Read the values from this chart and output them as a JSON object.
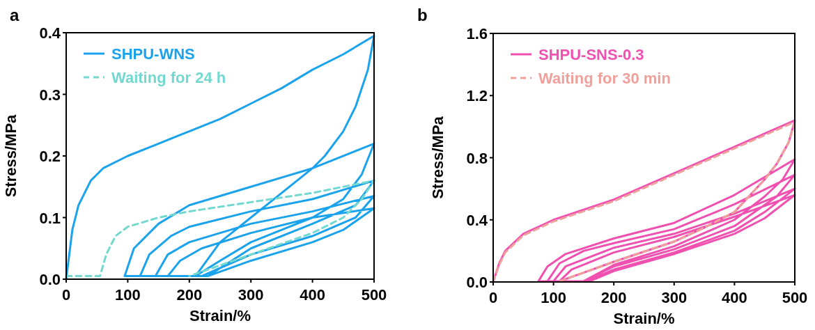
{
  "chart_data": [
    {
      "type": "line",
      "annotations": [
        "a"
      ],
      "xlabel": "Strain/%",
      "ylabel": "Stress/MPa",
      "xlim": [
        0,
        500
      ],
      "ylim": [
        0,
        0.4
      ],
      "xticks": [
        0,
        100,
        200,
        300,
        400,
        500
      ],
      "yticks": [
        {
          "value": 0,
          "label": "0.0"
        },
        0.1,
        0.2,
        0.3,
        0.4
      ],
      "legend": "top left",
      "series": [
        {
          "name": "SHPU-WNS",
          "color": "#1aa3ec",
          "line_style": "solid",
          "x": [
            0,
            10,
            20,
            40,
            60,
            100,
            150,
            200,
            250,
            300,
            350,
            400,
            450,
            500,
            490,
            470,
            450,
            420,
            400,
            350,
            300,
            250,
            210,
            150,
            95,
            null,
            95,
            110,
            150,
            200,
            300,
            400,
            500,
            480,
            450,
            400,
            350,
            300,
            250,
            210,
            120,
            null,
            120,
            135,
            170,
            200,
            300,
            400,
            500,
            470,
            400,
            300,
            230,
            145,
            null,
            145,
            165,
            200,
            300,
            400,
            500,
            470,
            400,
            300,
            220,
            165,
            null,
            165,
            185,
            220,
            300,
            400,
            500,
            450,
            400,
            300,
            230
          ],
          "values": [
            0,
            0.08,
            0.12,
            0.16,
            0.18,
            0.2,
            0.22,
            0.24,
            0.26,
            0.285,
            0.31,
            0.34,
            0.365,
            0.395,
            0.34,
            0.28,
            0.24,
            0.2,
            0.18,
            0.14,
            0.1,
            0.06,
            0.005,
            0.005,
            0.005,
            null,
            0.005,
            0.05,
            0.09,
            0.12,
            0.15,
            0.18,
            0.22,
            0.17,
            0.13,
            0.1,
            0.08,
            0.06,
            0.03,
            0.005,
            0.005,
            null,
            0.005,
            0.04,
            0.07,
            0.085,
            0.11,
            0.13,
            0.16,
            0.12,
            0.09,
            0.05,
            0.005,
            0.005,
            null,
            0.005,
            0.04,
            0.06,
            0.09,
            0.11,
            0.135,
            0.1,
            0.07,
            0.04,
            0.005,
            0.005,
            null,
            0.005,
            0.03,
            0.05,
            0.075,
            0.1,
            0.115,
            0.08,
            0.06,
            0.03,
            0.005
          ]
        },
        {
          "name": "Waiting for 24 h",
          "color": "#72d8d0",
          "line_style": "dashed",
          "x": [
            0,
            55,
            65,
            80,
            100,
            150,
            200,
            300,
            400,
            500,
            480,
            450,
            400,
            300,
            200
          ],
          "values": [
            0.005,
            0.005,
            0.04,
            0.07,
            0.085,
            0.1,
            0.11,
            0.125,
            0.14,
            0.16,
            0.13,
            0.1,
            0.075,
            0.04,
            0.005
          ]
        }
      ]
    },
    {
      "type": "line",
      "annotations": [
        "b"
      ],
      "xlabel": "Strain/%",
      "ylabel": "Stress/MPa",
      "xlim": [
        0,
        500
      ],
      "ylim": [
        0,
        1.6
      ],
      "xticks": [
        0,
        100,
        200,
        300,
        400,
        500
      ],
      "yticks": [
        {
          "value": 0,
          "label": "0.0"
        },
        0.4,
        0.8,
        1.2,
        1.6
      ],
      "legend": "top left",
      "series": [
        {
          "name": "SHPU-SNS-0.3",
          "color": "#f050b0",
          "line_style": "solid",
          "x": [
            0,
            10,
            20,
            50,
            100,
            200,
            300,
            400,
            500,
            490,
            470,
            450,
            400,
            350,
            300,
            200,
            150,
            110,
            75,
            null,
            75,
            90,
            120,
            200,
            300,
            400,
            500,
            480,
            450,
            400,
            300,
            200,
            150,
            90,
            null,
            90,
            110,
            150,
            200,
            300,
            400,
            500,
            470,
            400,
            300,
            200,
            150,
            100,
            null,
            100,
            120,
            200,
            300,
            400,
            500,
            450,
            400,
            300,
            200,
            155,
            110,
            null,
            110,
            130,
            200,
            300,
            400,
            500,
            450,
            400,
            300,
            200,
            160
          ],
          "values": [
            0,
            0.12,
            0.2,
            0.31,
            0.4,
            0.53,
            0.7,
            0.87,
            1.04,
            0.9,
            0.76,
            0.66,
            0.45,
            0.35,
            0.26,
            0.13,
            0.06,
            0.005,
            0.005,
            null,
            0.005,
            0.1,
            0.18,
            0.28,
            0.38,
            0.56,
            0.79,
            0.66,
            0.55,
            0.4,
            0.23,
            0.11,
            0.005,
            0.005,
            null,
            0.005,
            0.12,
            0.2,
            0.25,
            0.34,
            0.5,
            0.69,
            0.55,
            0.36,
            0.21,
            0.1,
            0.005,
            0.005,
            null,
            0.005,
            0.1,
            0.22,
            0.31,
            0.44,
            0.6,
            0.45,
            0.33,
            0.19,
            0.08,
            0.005,
            0.005,
            null,
            0.005,
            0.08,
            0.19,
            0.29,
            0.42,
            0.56,
            0.41,
            0.31,
            0.18,
            0.07,
            0.005
          ]
        },
        {
          "name": "Waiting for 30 min",
          "color": "#f0a09a",
          "line_style": "dashed",
          "x": [
            0,
            10,
            20,
            50,
            100,
            200,
            300,
            400,
            500,
            490,
            470,
            450,
            400,
            350,
            300,
            200,
            150,
            110
          ],
          "values": [
            0,
            0.11,
            0.19,
            0.3,
            0.39,
            0.52,
            0.69,
            0.86,
            1.03,
            0.9,
            0.76,
            0.66,
            0.45,
            0.35,
            0.26,
            0.13,
            0.06,
            0.005
          ]
        }
      ]
    }
  ]
}
